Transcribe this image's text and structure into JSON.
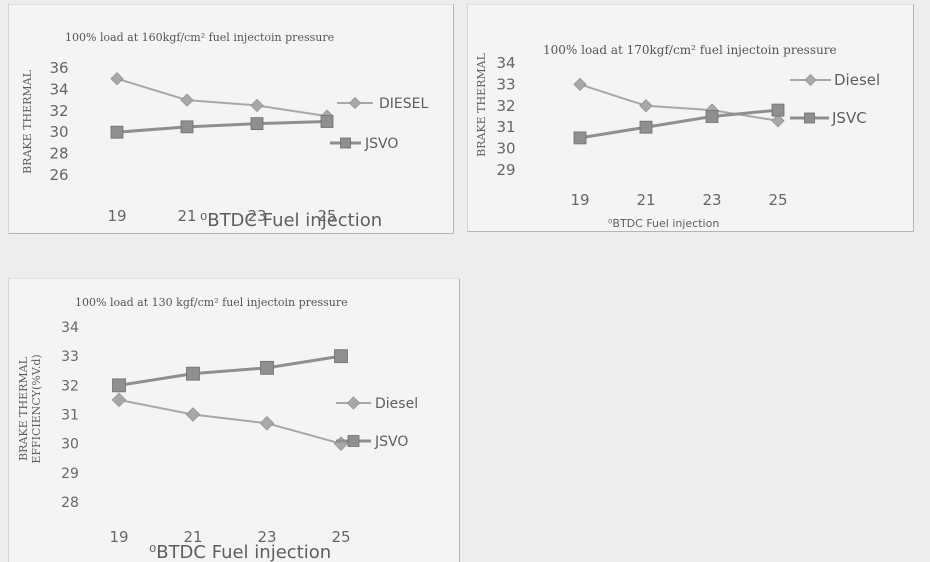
{
  "chart_data": [
    {
      "type": "line",
      "title": "100% load at 160kgf/cm² fuel injectoin pressure",
      "xlabel": "⁰BTDC Fuel injection",
      "ylabel": "BRAKE THERMAL",
      "ylabel2": "",
      "categories": [
        "19",
        "21",
        "23",
        "25"
      ],
      "yticks": [
        "36",
        "34",
        "32",
        "30",
        "28",
        "26"
      ],
      "ylim": [
        26,
        36
      ],
      "grid": false,
      "legend_position": "right",
      "series": [
        {
          "name": "DIESEL",
          "values": [
            35,
            33,
            32.5,
            31.5
          ],
          "marker": "diamond",
          "color": "#a8a8a8"
        },
        {
          "name": "JSVO",
          "values": [
            30,
            30.5,
            30.8,
            31
          ],
          "marker": "square",
          "color": "#8f8f8f"
        }
      ]
    },
    {
      "type": "line",
      "title": "100% load at 170kgf/cm² fuel injectoin pressure",
      "xlabel": "⁰BTDC Fuel injection",
      "ylabel": "BRAKE THERMAL",
      "ylabel2": "",
      "categories": [
        "19",
        "21",
        "23",
        "25"
      ],
      "yticks": [
        "34",
        "33",
        "32",
        "31",
        "30",
        "29"
      ],
      "ylim": [
        29,
        34
      ],
      "grid": false,
      "legend_position": "right",
      "series": [
        {
          "name": "Diesel",
          "values": [
            33,
            32,
            31.8,
            31.3
          ],
          "marker": "diamond",
          "color": "#a8a8a8"
        },
        {
          "name": "JSVC",
          "values": [
            30.5,
            31,
            31.5,
            31.8
          ],
          "marker": "square",
          "color": "#8f8f8f"
        }
      ]
    },
    {
      "type": "line",
      "title": "100% load at 130 kgf/cm² fuel injectoin pressure",
      "xlabel": "⁰BTDC Fuel injection",
      "ylabel": "BRAKE THERMAL",
      "ylabel2": "EFFICIENCY(%V.d)",
      "categories": [
        "19",
        "21",
        "23",
        "25"
      ],
      "yticks": [
        "34",
        "33",
        "32",
        "31",
        "30",
        "29",
        "28"
      ],
      "ylim": [
        28,
        34
      ],
      "grid": false,
      "legend_position": "right",
      "series": [
        {
          "name": "Diesel",
          "values": [
            31.5,
            31,
            30.7,
            30
          ],
          "marker": "diamond",
          "color": "#a8a8a8"
        },
        {
          "name": "JSVO",
          "values": [
            32,
            32.4,
            32.6,
            33
          ],
          "marker": "square",
          "color": "#8f8f8f"
        }
      ]
    }
  ]
}
